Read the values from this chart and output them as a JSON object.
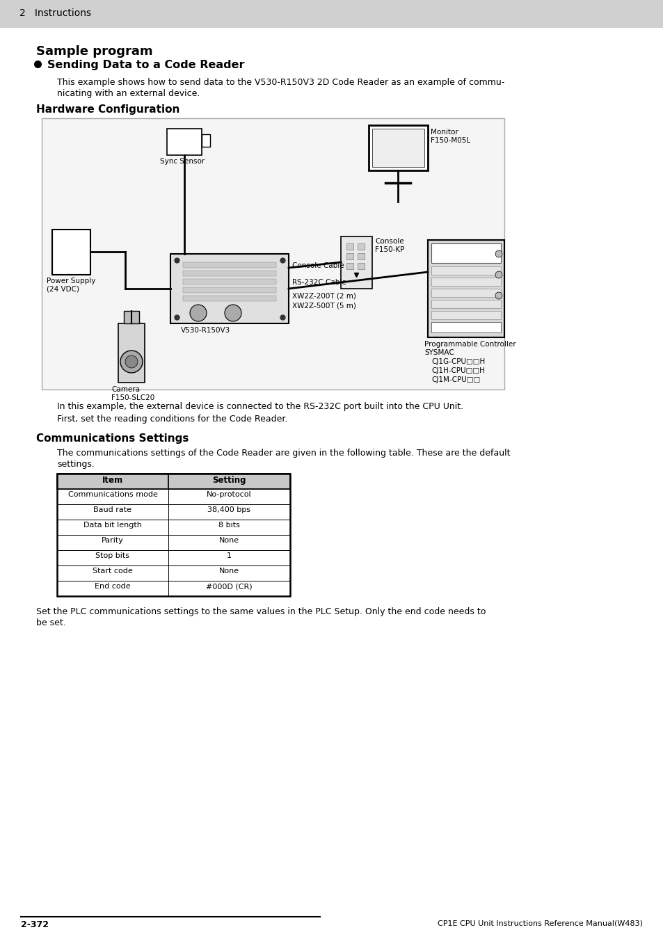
{
  "page_bg": "#ffffff",
  "header_bg": "#d0d0d0",
  "header_text": "2   Instructions",
  "title_sample": "Sample program",
  "title_sending": "Sending Data to a Code Reader",
  "section1_title": "Hardware Configuration",
  "section2_title": "Communications Settings",
  "body_text1_l1": "This example shows how to send data to the V530-R150V3 2D Code Reader as an example of commu-",
  "body_text1_l2": "nicating with an external device.",
  "body_text2": "In this example, the external device is connected to the RS-232C port built into the CPU Unit.",
  "body_text3": "First, set the reading conditions for the Code Reader.",
  "body_text4_l1": "The communications settings of the Code Reader are given in the following table. These are the default",
  "body_text4_l2": "settings.",
  "body_text5_l1": "Set the PLC communications settings to the same values in the PLC Setup. Only the end code needs to",
  "body_text5_l2": "be set.",
  "footer_left": "2-372",
  "footer_right": "CP1E CPU Unit Instructions Reference Manual(W483)",
  "table_headers": [
    "Item",
    "Setting"
  ],
  "table_rows": [
    [
      "Communications mode",
      "No-protocol"
    ],
    [
      "Baud rate",
      "38,400 bps"
    ],
    [
      "Data bit length",
      "8 bits"
    ],
    [
      "Parity",
      "None"
    ],
    [
      "Stop bits",
      "1"
    ],
    [
      "Start code",
      "None"
    ],
    [
      "End code",
      "#000D (CR)"
    ]
  ],
  "diag": {
    "sync_sensor": "Sync Sensor",
    "monitor": "Monitor\nF150-M05L",
    "power_supply": "Power Supply\n(24 VDC)",
    "console": "Console\nF150-KP",
    "console_cable": "Console Cable",
    "rs232c": "RS-232C Cable",
    "xw2z_200": "XW2Z-200T (2 m)",
    "xw2z_500": "XW2Z-500T (5 m)",
    "v530": "V530-R150V3",
    "camera": "Camera\nF150-SLC20",
    "prog_ctrl": "Programmable Controller",
    "sysmac": "SYSMAC",
    "cpu1": "CJ1G-CPU□□H",
    "cpu2": "CJ1H-CPU□□H",
    "cpu3": "CJ1M-CPU□□"
  }
}
